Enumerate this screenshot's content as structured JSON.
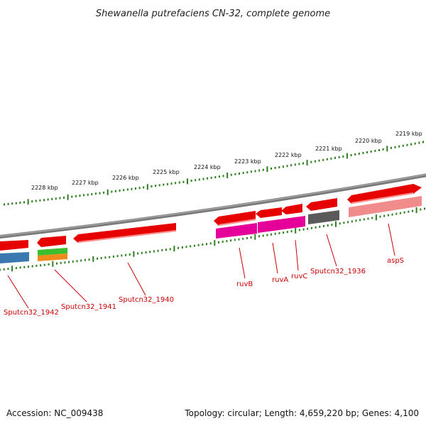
{
  "title": "Shewanella putrefaciens CN-32, complete genome",
  "footer": {
    "accession": "Accession: NC_009438",
    "topology": "Topology: circular; Length: 4,659,220 bp; Genes: 4,100"
  },
  "colors": {
    "tick": "#2e7d1e",
    "backbone": "#7a7a7a",
    "gene_red": "#e60000",
    "label_red": "#cc0000",
    "magenta": "#e6009a",
    "pink": "#f08c8c",
    "blue": "#3a78b0",
    "green": "#3cbf2e",
    "orange": "#f08a1a",
    "gray": "#5a5a5a"
  },
  "ruler": {
    "labels": [
      "2228 kbp",
      "2227 kbp",
      "2226 kbp",
      "2225 kbp",
      "2224 kbp",
      "2223 kbp",
      "2222 kbp",
      "2221 kbp",
      "2220 kbp",
      "2219 kbp"
    ]
  },
  "gene_labels": {
    "g1942": "Sputcn32_1942",
    "g1941": "Sputcn32_1941",
    "g1940": "Sputcn32_1940",
    "ruvB": "ruvB",
    "ruvA": "ruvA",
    "ruvC": "ruvC",
    "g1936": "Sputcn32_1936",
    "aspS": "aspS"
  }
}
